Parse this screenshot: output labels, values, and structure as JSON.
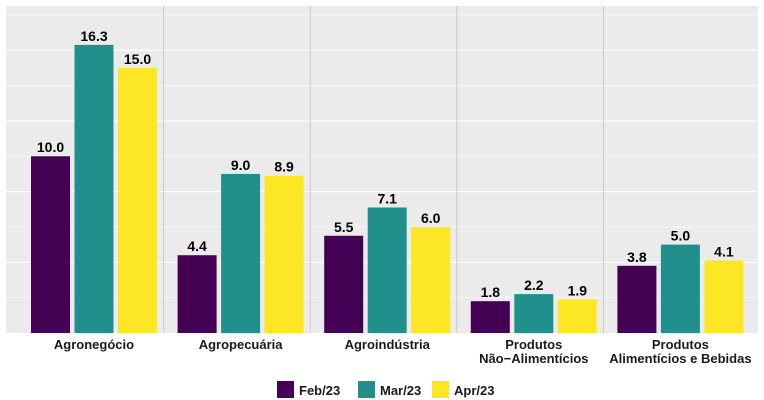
{
  "chart_data": {
    "type": "bar",
    "categories": [
      [
        "Agronegócio"
      ],
      [
        "Agropecuária"
      ],
      [
        "Agroindústria"
      ],
      [
        "Produtos",
        "Não−Alimentícios"
      ],
      [
        "Produtos",
        "Alimentícios e Bebidas"
      ]
    ],
    "series": [
      {
        "name": "Feb/23",
        "color": "#440154",
        "values": [
          10.0,
          4.4,
          5.5,
          1.8,
          3.8
        ],
        "labels": [
          "10.0",
          "4.4",
          "5.5",
          "1.8",
          "3.8"
        ]
      },
      {
        "name": "Mar/23",
        "color": "#21908C",
        "values": [
          16.3,
          9.0,
          7.1,
          2.2,
          5.0
        ],
        "labels": [
          "16.3",
          "9.0",
          "7.1",
          "2.2",
          "5.0"
        ]
      },
      {
        "name": "Apr/23",
        "color": "#FDE725",
        "values": [
          15.0,
          8.9,
          6.0,
          1.9,
          4.1
        ],
        "labels": [
          "15.0",
          "8.9",
          "6.0",
          "1.9",
          "4.1"
        ]
      }
    ],
    "ylim": [
      0,
      18.5
    ],
    "grid": true,
    "legend": "bottom",
    "title": "",
    "xlabel": "",
    "ylabel": ""
  }
}
